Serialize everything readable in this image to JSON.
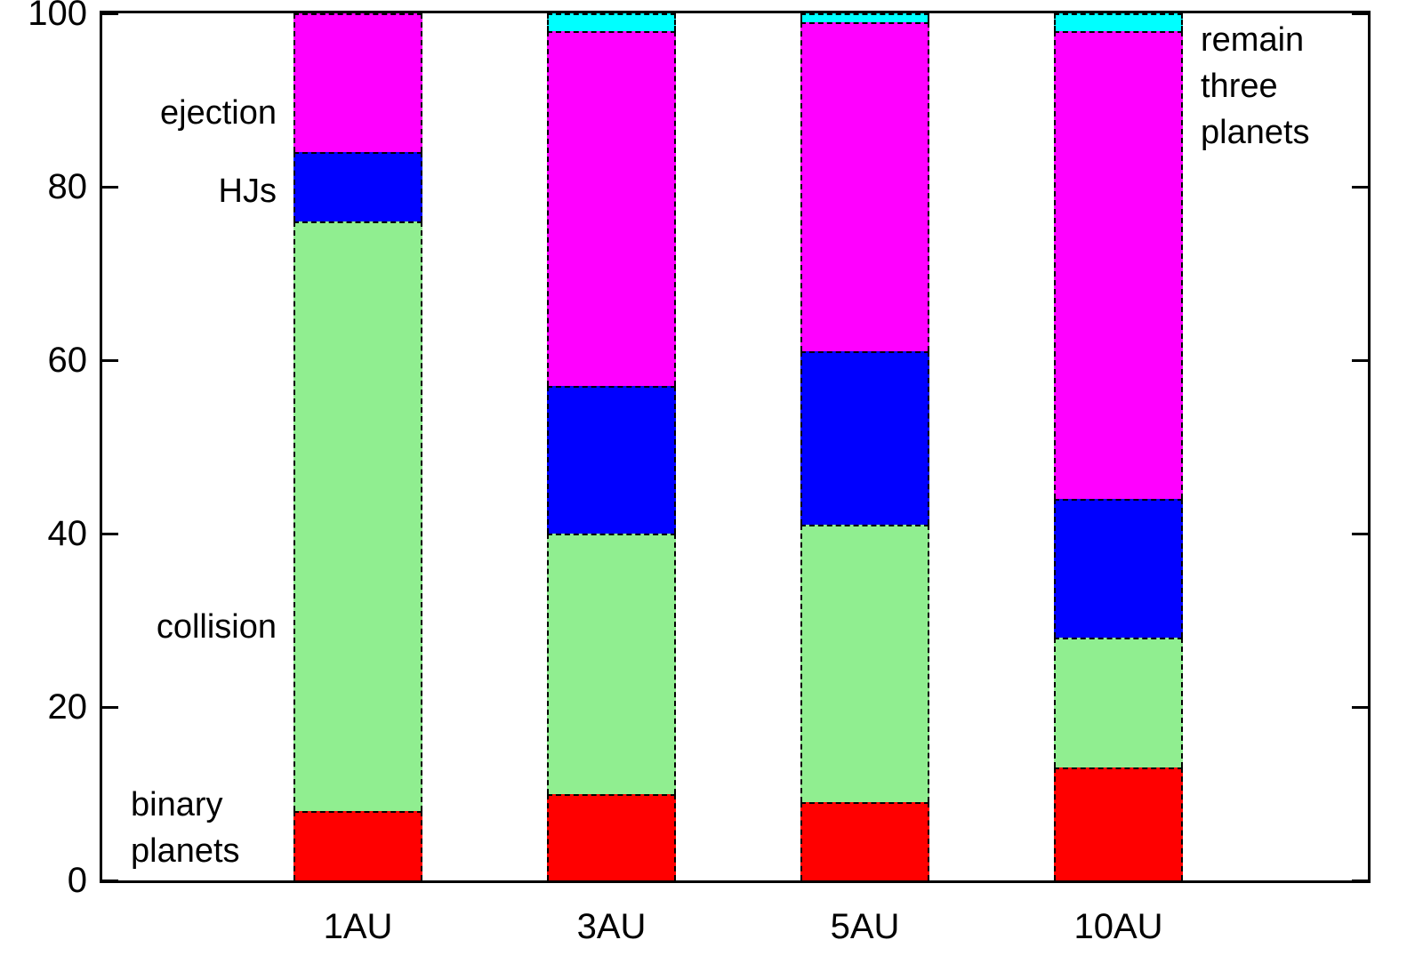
{
  "chart_data": {
    "type": "bar",
    "stacked": true,
    "title": "",
    "xlabel": "",
    "ylabel": "",
    "ylim": [
      0,
      100
    ],
    "yticks": [
      0,
      20,
      40,
      60,
      80,
      100
    ],
    "grid": false,
    "legend_position": "none (in-plot annotations)",
    "categories": [
      "1AU",
      "3AU",
      "5AU",
      "10AU"
    ],
    "series": [
      {
        "name": "binary planets",
        "color": "#ff0000",
        "values": [
          8,
          10,
          9,
          13
        ]
      },
      {
        "name": "collision",
        "color": "#90ee90",
        "values": [
          68,
          30,
          32,
          15
        ]
      },
      {
        "name": "HJs",
        "color": "#0000ff",
        "values": [
          8,
          17,
          20,
          16
        ]
      },
      {
        "name": "ejection",
        "color": "#ff00ff",
        "values": [
          16,
          41,
          38,
          54
        ]
      },
      {
        "name": "remain three planets",
        "color": "#00ffff",
        "values": [
          0,
          2,
          1,
          2
        ]
      }
    ],
    "annotations": {
      "ejection": "ejection",
      "hjs": "HJs",
      "collision": "collision",
      "binary_planets": "binary\nplanets",
      "remain_three_planets": "remain\nthree\nplanets"
    }
  }
}
